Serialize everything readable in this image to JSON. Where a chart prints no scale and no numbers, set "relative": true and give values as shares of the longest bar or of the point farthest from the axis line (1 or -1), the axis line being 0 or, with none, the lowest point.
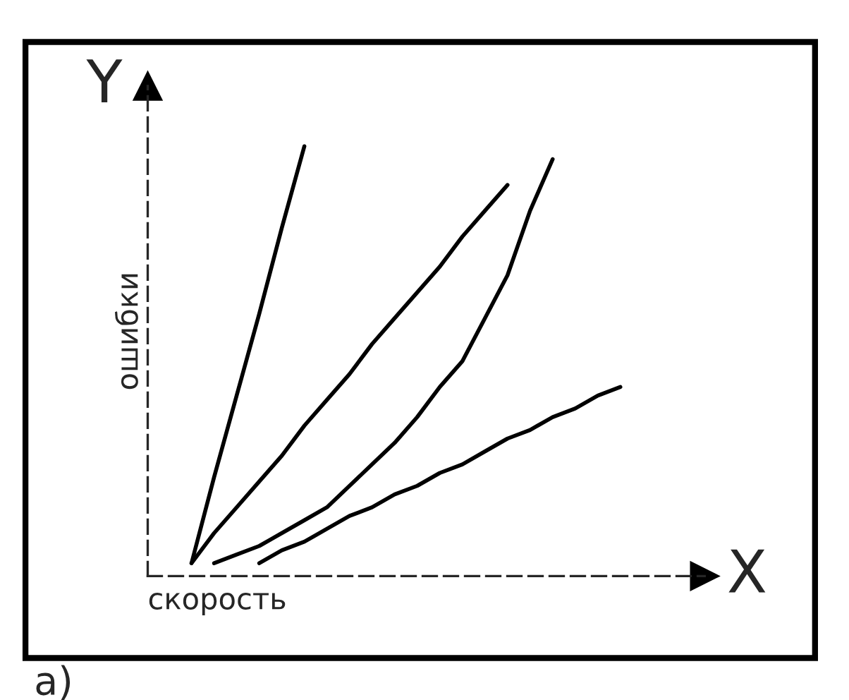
{
  "chart_data": {
    "type": "line",
    "relative": true,
    "xlabel": "скорость",
    "ylabel": "ошибки",
    "annotations": [
      "Y",
      "X",
      "а)"
    ],
    "marker": "none",
    "line_style": "solid",
    "categories": [
      null,
      null,
      null,
      null,
      null,
      null,
      null,
      null,
      null,
      null,
      null,
      null,
      null,
      null,
      null,
      null,
      null,
      null,
      null,
      null,
      null
    ],
    "series": [
      {
        "color": "#000000",
        "values": [
          null,
          0.03,
          0.23,
          0.42,
          0.61,
          0.81,
          1.0,
          null,
          null,
          null,
          null,
          null,
          null,
          null,
          null,
          null,
          null,
          null,
          null,
          null,
          null
        ]
      },
      {
        "color": "#000000",
        "values": [
          null,
          0.03,
          0.1,
          0.16,
          0.22,
          0.28,
          0.35,
          0.41,
          0.47,
          0.54,
          0.6,
          0.66,
          0.72,
          0.79,
          0.85,
          0.91,
          null,
          null,
          null,
          null,
          null
        ]
      },
      {
        "color": "#000000",
        "values": [
          null,
          null,
          0.03,
          0.05,
          0.07,
          0.1,
          0.13,
          0.16,
          0.21,
          0.26,
          0.31,
          0.37,
          0.44,
          0.5,
          0.6,
          0.7,
          0.85,
          0.97,
          null,
          null,
          null
        ]
      },
      {
        "color": "#000000",
        "values": [
          null,
          null,
          null,
          null,
          0.03,
          0.06,
          0.08,
          0.11,
          0.14,
          0.16,
          0.19,
          0.21,
          0.24,
          0.26,
          0.29,
          0.32,
          0.34,
          0.37,
          0.39,
          0.42,
          0.44
        ]
      }
    ]
  }
}
